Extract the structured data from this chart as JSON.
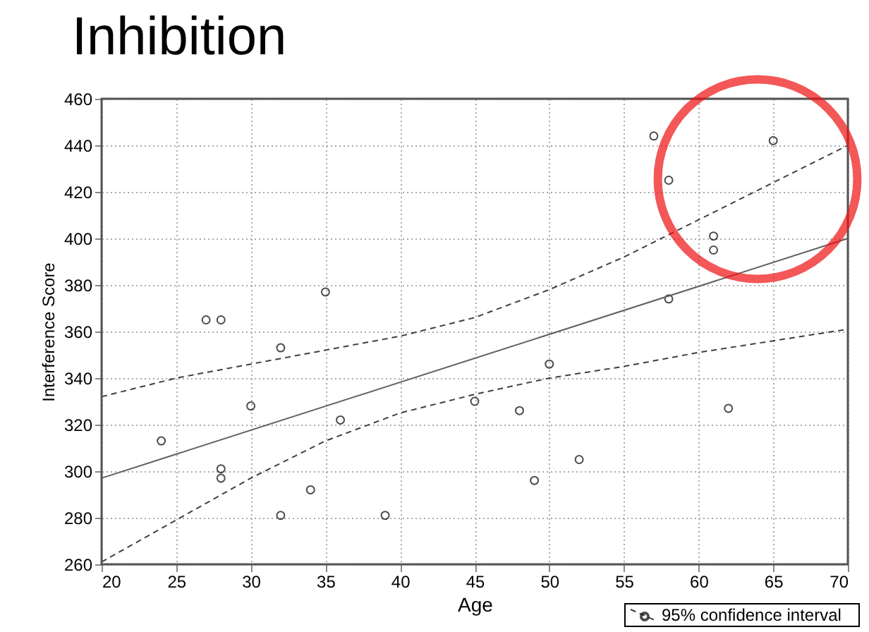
{
  "chart_data": {
    "type": "scatter",
    "title": "Inhibition",
    "xlabel": "Age",
    "ylabel": "Interference Score",
    "xlim": [
      20,
      70
    ],
    "xticks": [
      20,
      25,
      30,
      35,
      40,
      45,
      50,
      55,
      60,
      65,
      70
    ],
    "ylim": [
      260,
      460
    ],
    "yticks": [
      260,
      280,
      300,
      320,
      340,
      360,
      380,
      400,
      420,
      440,
      460
    ],
    "grid": true,
    "legend": "bottom right",
    "series": [
      {
        "marker": "circle",
        "color": "#000000",
        "x": [
          24,
          27,
          28,
          28,
          28,
          30,
          32,
          32,
          34,
          35,
          36,
          39,
          45,
          48,
          49,
          50,
          52,
          57,
          58,
          58,
          61,
          61,
          62,
          65
        ],
        "values": [
          313,
          365,
          365,
          301,
          297,
          328,
          353,
          281,
          292,
          377,
          322,
          281,
          330,
          326,
          296,
          346,
          305,
          444,
          425,
          374,
          401,
          395,
          327,
          442
        ]
      },
      {
        "type": "line",
        "line_style": "solid",
        "color": "#606060",
        "x": [
          20,
          70
        ],
        "values": [
          297,
          400
        ]
      },
      {
        "type": "line",
        "line_style": "dashed",
        "color": "#404040",
        "name": "95% confidence interval",
        "x": [
          20,
          25,
          30,
          35,
          40,
          45,
          50,
          55,
          60,
          65,
          70
        ],
        "values": [
          332,
          340,
          346,
          352,
          358,
          366,
          378,
          392,
          408,
          424,
          440
        ]
      },
      {
        "type": "line",
        "line_style": "dashed",
        "color": "#404040",
        "x": [
          20,
          25,
          30,
          35,
          40,
          45,
          50,
          55,
          60,
          65,
          70
        ],
        "values": [
          261,
          279,
          297,
          313,
          325,
          333,
          340,
          345,
          351,
          356,
          361
        ]
      }
    ]
  }
}
